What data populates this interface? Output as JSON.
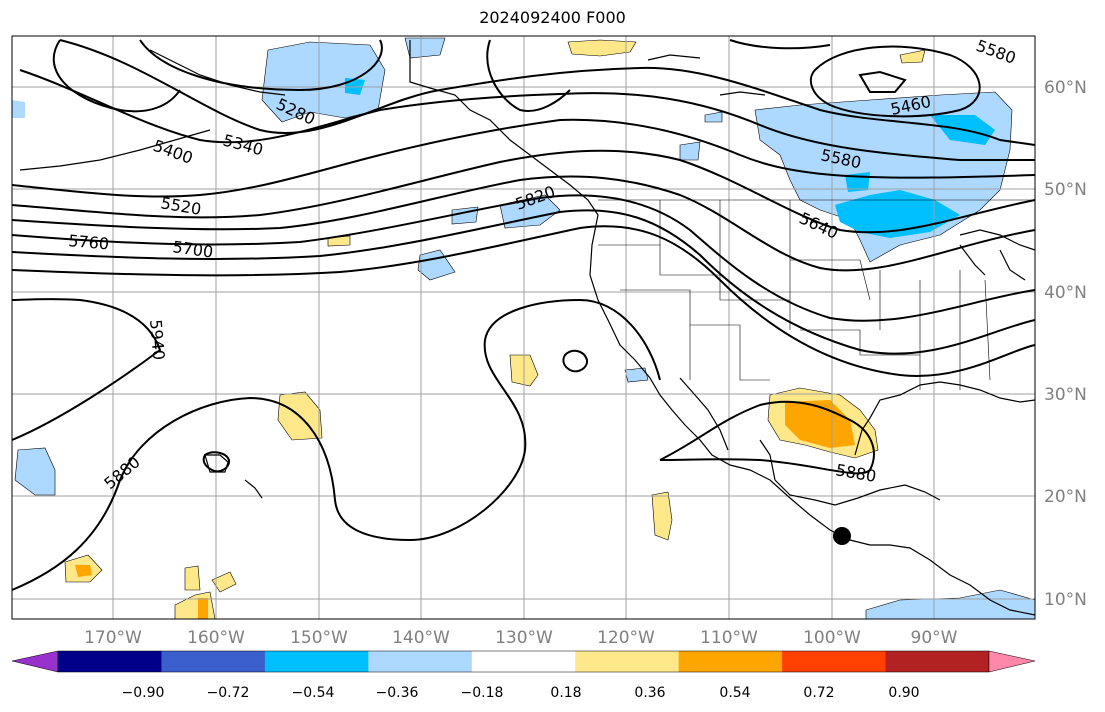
{
  "title": "2024092400 F000",
  "map": {
    "lat_labels": [
      "60°N",
      "50°N",
      "40°N",
      "30°N",
      "20°N",
      "10°N"
    ],
    "lon_labels": [
      "170°W",
      "160°W",
      "150°W",
      "140°W",
      "130°W",
      "120°W",
      "110°W",
      "100°W",
      "90°W"
    ],
    "contour_labels": [
      "5340",
      "5400",
      "5280",
      "5520",
      "5760",
      "5700",
      "5820",
      "5580",
      "5460",
      "5640",
      "5940",
      "5880",
      "5880",
      "5580"
    ],
    "storm_marker": "filled-circle"
  },
  "colorbar": {
    "colors": [
      "#9932cc",
      "#00008b",
      "#3a5fcd",
      "#00bfff",
      "#add8ff",
      "#ffffff",
      "#ffe88a",
      "#ffa500",
      "#ff4000",
      "#b22222",
      "#ff88aa"
    ],
    "tick_labels": [
      "−0.90",
      "−0.72",
      "−0.54",
      "−0.36",
      "−0.18",
      "0.18",
      "0.36",
      "0.54",
      "0.72",
      "0.90"
    ]
  }
}
